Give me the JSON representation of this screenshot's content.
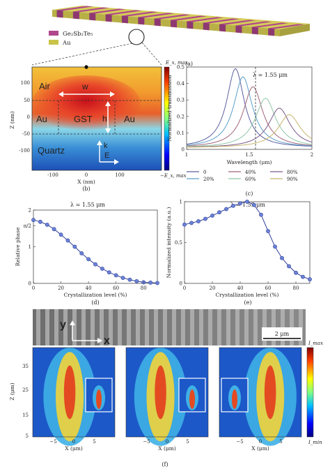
{
  "panel_a": {
    "legend": [
      {
        "label": "Ge₂Sb₂Te₅",
        "color": "#b0468c"
      },
      {
        "label": "Au",
        "color": "#c9c34a"
      }
    ],
    "caption": "(a)"
  },
  "panel_b": {
    "labels": {
      "air": "Air",
      "au_left": "Au",
      "gst": "GST",
      "au_right": "Au",
      "quartz": "Quartz",
      "w": "w",
      "h": "h",
      "k": "k",
      "e": "E"
    },
    "y_ticks": [
      "100",
      "50",
      "0",
      "-50",
      "-100"
    ],
    "x_ticks": [
      "-100",
      "0",
      "100"
    ],
    "ylabel": "Z (nm)",
    "xlabel": "X (nm)",
    "cbar_max": "E_x, max",
    "cbar_min": "−E_x, max",
    "caption": "(b)"
  },
  "panel_c": {
    "annotation": "λ = 1.55 μm",
    "caption": "(c)"
  },
  "panel_d": {
    "title": "λ = 1.55 μm",
    "caption": "(d)"
  },
  "panel_e": {
    "title": "λ = 1.55 μm",
    "caption": "(e)"
  },
  "panel_f": {
    "sem_y": "y",
    "sem_x": "x",
    "scale": "2 μm",
    "ylabel": "Z (μm)",
    "xlabel": "X (μm)",
    "y_ticks": [
      "35",
      "25",
      "15",
      "5"
    ],
    "x_ticks": [
      "−5",
      "0",
      "5"
    ],
    "cbar_max": "I_max",
    "cbar_min": "I_min",
    "caption": "(f)"
  },
  "chart_data": [
    {
      "type": "line",
      "panel": "c",
      "xlabel": "Wavelength (μm)",
      "ylabel": "Normalized transmission",
      "xlim": [
        1,
        2
      ],
      "ylim": [
        0,
        0.5
      ],
      "x_ticks": [
        "1",
        "1.5",
        "2"
      ],
      "y_ticks": [
        "0",
        "0.1",
        "0.2",
        "0.3",
        "0.4",
        "0.5"
      ],
      "marker_line_x": 1.55,
      "series": [
        {
          "name": "0",
          "color": "#5a5f9e",
          "peak_x": 1.39,
          "peak_y": 0.48,
          "width": 0.17
        },
        {
          "name": "20%",
          "color": "#5a9ec9",
          "peak_x": 1.45,
          "peak_y": 0.43,
          "width": 0.18
        },
        {
          "name": "40%",
          "color": "#a0647a",
          "peak_x": 1.53,
          "peak_y": 0.37,
          "width": 0.19
        },
        {
          "name": "60%",
          "color": "#8fc7a8",
          "peak_x": 1.63,
          "peak_y": 0.3,
          "width": 0.2
        },
        {
          "name": "80%",
          "color": "#7b5a8a",
          "peak_x": 1.74,
          "peak_y": 0.24,
          "width": 0.21
        },
        {
          "name": "90%",
          "color": "#c7b46a",
          "peak_x": 1.82,
          "peak_y": 0.2,
          "width": 0.22
        }
      ]
    },
    {
      "type": "line",
      "panel": "d",
      "xlabel": "Crystallization level (%)",
      "ylabel": "Relative phase",
      "xlim": [
        0,
        90
      ],
      "ylim": [
        0,
        2
      ],
      "x_ticks": [
        "0",
        "20",
        "40",
        "60",
        "80"
      ],
      "y_tick_labels": [
        {
          "v": 0,
          "t": "0"
        },
        {
          "v": 1,
          "t": "1"
        },
        {
          "v": 1.5708,
          "t": "π/2"
        },
        {
          "v": 2,
          "t": "2"
        }
      ],
      "x": [
        0,
        5,
        10,
        15,
        20,
        25,
        30,
        35,
        40,
        45,
        50,
        55,
        60,
        65,
        70,
        75,
        80,
        85,
        90
      ],
      "y": [
        1.73,
        1.68,
        1.6,
        1.48,
        1.33,
        1.17,
        1.0,
        0.82,
        0.66,
        0.52,
        0.4,
        0.3,
        0.22,
        0.15,
        0.1,
        0.06,
        0.03,
        0.02,
        0.01
      ]
    },
    {
      "type": "line",
      "panel": "e",
      "xlabel": "Crystallization level (%)",
      "ylabel": "Normalized intensity (a.u.)",
      "xlim": [
        0,
        90
      ],
      "ylim": [
        0,
        1
      ],
      "x_ticks": [
        "0",
        "20",
        "40",
        "60",
        "80"
      ],
      "y_ticks": [
        "0",
        "0.5",
        "1"
      ],
      "x": [
        0,
        5,
        10,
        15,
        20,
        25,
        30,
        35,
        40,
        45,
        50,
        55,
        60,
        65,
        70,
        75,
        80,
        85,
        90
      ],
      "y": [
        0.72,
        0.74,
        0.76,
        0.79,
        0.83,
        0.87,
        0.91,
        0.95,
        0.98,
        1.0,
        0.96,
        0.84,
        0.64,
        0.45,
        0.31,
        0.21,
        0.13,
        0.08,
        0.05
      ]
    }
  ]
}
